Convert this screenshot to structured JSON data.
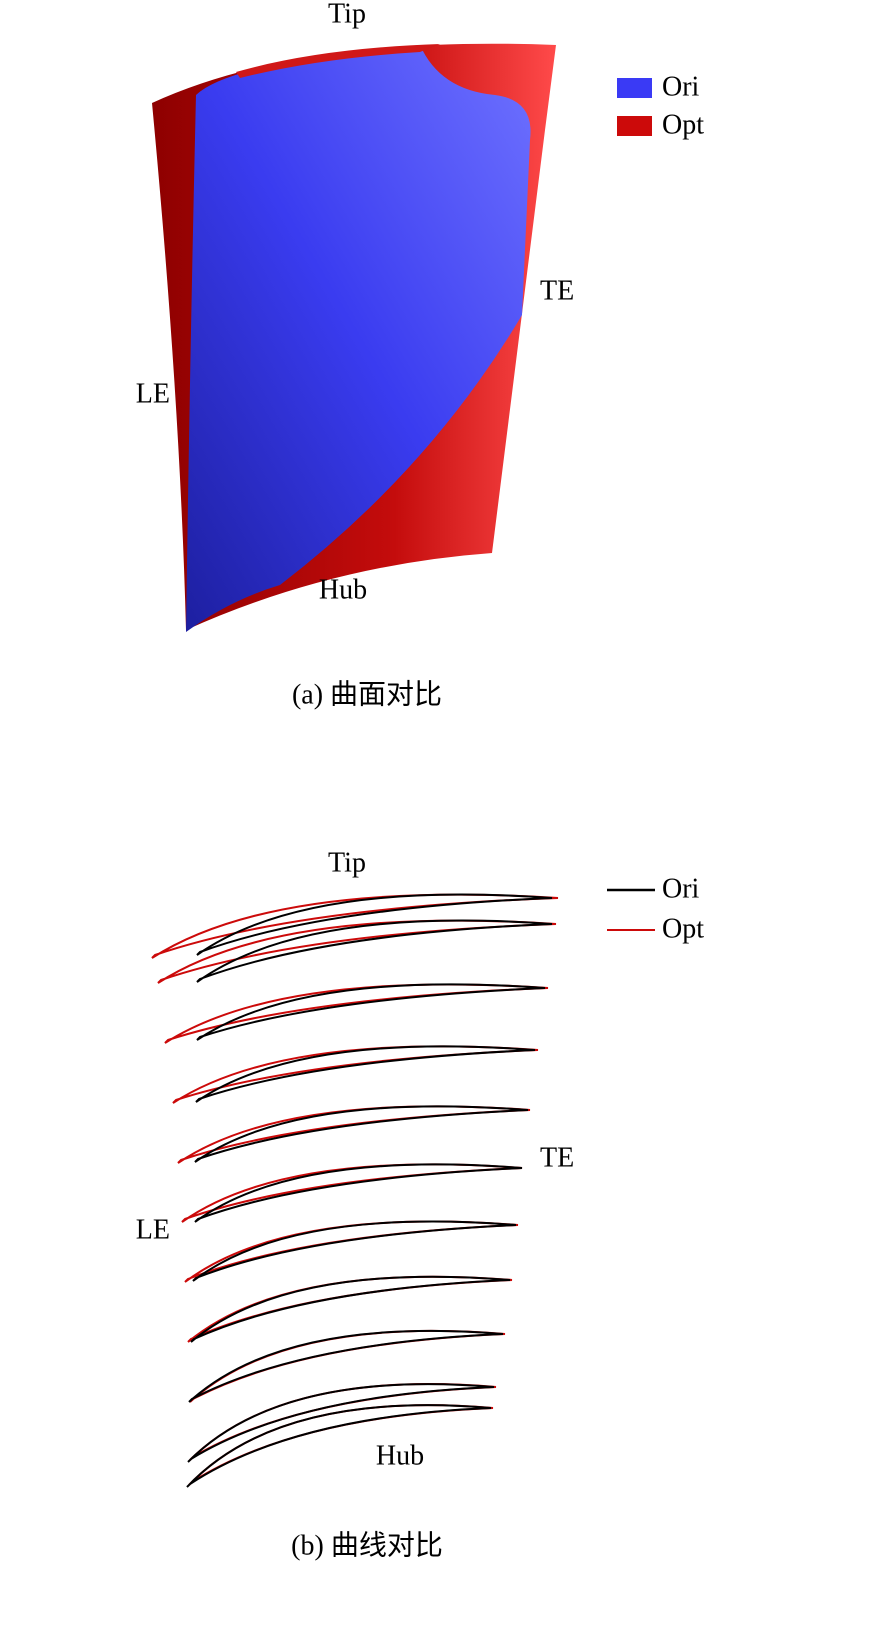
{
  "panel_a": {
    "labels": {
      "tip": "Tip",
      "te": "TE",
      "le": "LE",
      "hub": "Hub"
    },
    "legend": [
      "Ori",
      "Opt"
    ],
    "caption": "(a) 曲面对比"
  },
  "panel_b": {
    "labels": {
      "tip": "Tip",
      "te": "TE",
      "le": "LE",
      "hub": "Hub"
    },
    "legend": [
      "Ori",
      "Opt"
    ],
    "caption": "(b) 曲线对比"
  }
}
